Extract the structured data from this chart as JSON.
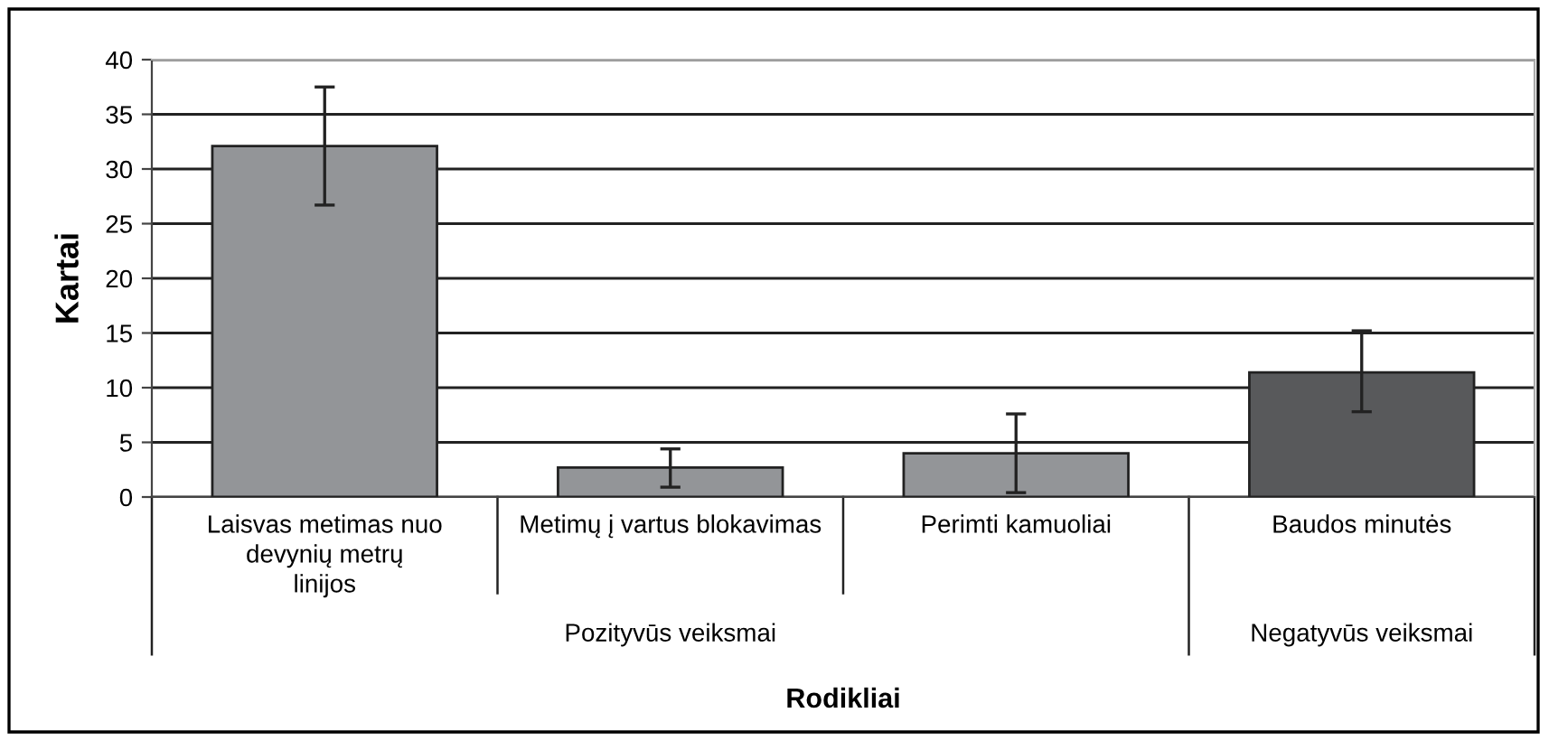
{
  "chart_data": {
    "type": "bar",
    "categories": [
      "Laisvas metimas nuo\ndevynių metrų\nlinijos",
      "Metimų į vartus blokavimas",
      "Perimti kamuoliai",
      "Baudos minutės"
    ],
    "values": [
      32.1,
      2.7,
      4.0,
      11.4
    ],
    "errors": [
      [
        26.7,
        37.5
      ],
      [
        0.9,
        4.4
      ],
      [
        0.4,
        7.6
      ],
      [
        7.8,
        15.2
      ]
    ],
    "colors": [
      "#939598",
      "#939598",
      "#939598",
      "#58595b"
    ],
    "ylabel": "Kartai",
    "xlabel": "Rodikliai",
    "annotations": [
      "Pozityvūs veiksmai",
      "Negatyvūs veiksmai"
    ],
    "ylim": [
      0,
      40
    ],
    "yticks": [
      0,
      5,
      10,
      15,
      20,
      25,
      30,
      35,
      40
    ],
    "grid": "y",
    "legend": false
  }
}
